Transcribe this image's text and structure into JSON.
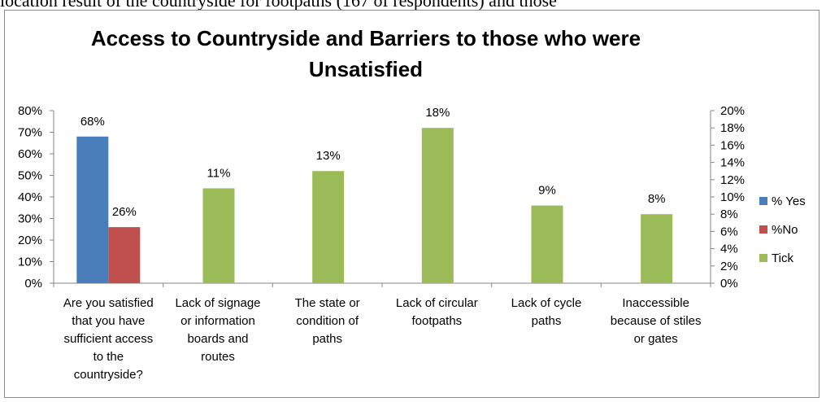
{
  "top_text": "iocation result of the countryside for footpaths (167 of respondents) and those",
  "chart_data": {
    "type": "bar",
    "title_lines": [
      "Access to Countryside and Barriers to those who were",
      "Unsatisfied"
    ],
    "categories": [
      [
        "Are you satisfied",
        "that you have",
        "sufficient access",
        "to the",
        "countryside?"
      ],
      [
        "Lack of signage",
        "or information",
        "boards and",
        "routes"
      ],
      [
        "The state or",
        "condition of",
        "paths"
      ],
      [
        "Lack of circular",
        "footpaths"
      ],
      [
        "Lack of cycle",
        "paths"
      ],
      [
        "Inaccessible",
        "because of stiles",
        "or gates"
      ]
    ],
    "series": [
      {
        "name": "% Yes",
        "axis": "left",
        "color": "#4a7ebb",
        "points": [
          {
            "cat": 0,
            "value": 68,
            "label": "68%"
          }
        ]
      },
      {
        "name": "%No",
        "axis": "left",
        "color": "#c0504d",
        "points": [
          {
            "cat": 0,
            "value": 26,
            "label": "26%"
          }
        ]
      },
      {
        "name": "Tick",
        "axis": "right",
        "color": "#9bbb59",
        "points": [
          {
            "cat": 1,
            "value": 11,
            "label": "11%"
          },
          {
            "cat": 2,
            "value": 13,
            "label": "13%"
          },
          {
            "cat": 3,
            "value": 18,
            "label": "18%"
          },
          {
            "cat": 4,
            "value": 9,
            "label": "9%"
          },
          {
            "cat": 5,
            "value": 8,
            "label": "8%"
          }
        ]
      }
    ],
    "y_left": {
      "min": 0,
      "max": 80,
      "step": 10,
      "ticks": [
        "0%",
        "10%",
        "20%",
        "30%",
        "40%",
        "50%",
        "60%",
        "70%",
        "80%"
      ]
    },
    "y_right": {
      "min": 0,
      "max": 20,
      "step": 2,
      "ticks": [
        "0%",
        "2%",
        "4%",
        "6%",
        "8%",
        "10%",
        "12%",
        "14%",
        "16%",
        "18%",
        "20%"
      ]
    },
    "legend": {
      "position": "right",
      "entries": [
        "% Yes",
        "%No",
        "Tick"
      ]
    },
    "grid": false
  }
}
